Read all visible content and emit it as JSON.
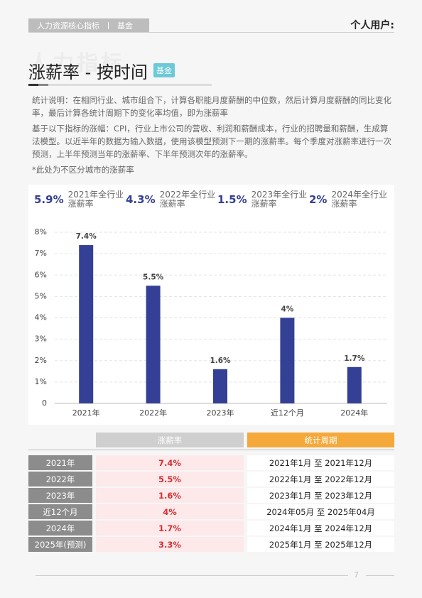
{
  "header": {
    "tags": [
      "人力资源核心指标",
      "基金"
    ],
    "user": "个人用户:"
  },
  "watermark": "人力指标",
  "title": "涨薪率 - 按时间",
  "badge": "基金",
  "description": [
    "统计说明：在相同行业、城市组合下，计算各职能月度薪酬的中位数，然后计算月度薪酬的同比变化率，最后计算各统计周期下的变化率均值，即为涨薪率",
    "基于以下指标的涨幅：CPI，行业上市公司的营收、利润和薪酬成本，行业的招聘量和薪酬，生成算法模型。以近半年的数据为输入数据，使用该模型预测下一期的涨薪率。每个季度对涨薪率进行一次预测，上半年预测当年的涨薪率、下半年预测次年的涨薪率。",
    "*此处为不区分城市的涨薪率"
  ],
  "summary": [
    {
      "value": "5.9%",
      "label": "2021年全行业涨薪率"
    },
    {
      "value": "4.3%",
      "label": "2022年全行业涨薪率"
    },
    {
      "value": "1.5%",
      "label": "2023年全行业涨薪率"
    },
    {
      "value": "2%",
      "label": "2024年全行业涨薪率"
    }
  ],
  "chart_data": {
    "type": "bar",
    "categories": [
      "2021年",
      "2022年",
      "2023年",
      "近12个月",
      "2024年"
    ],
    "values": [
      7.4,
      5.5,
      1.6,
      4,
      1.7
    ],
    "value_labels": [
      "7.4%",
      "5.5%",
      "1.6%",
      "4%",
      "1.7%"
    ],
    "color": "#343f96",
    "ylim": [
      0,
      8
    ],
    "yticks": [
      0,
      {
        "value": 1,
        "label": "1%"
      },
      {
        "value": 2,
        "label": "2%"
      },
      {
        "value": 3,
        "label": "3%"
      },
      {
        "value": 4,
        "label": "4%"
      },
      {
        "value": 5,
        "label": "5%"
      },
      {
        "value": 6,
        "label": "6%"
      },
      {
        "value": 7,
        "label": "7%"
      },
      {
        "value": 8,
        "label": "8%"
      }
    ],
    "grid": true
  },
  "table": {
    "headers": [
      "涨薪率",
      "统计周期"
    ],
    "rows": [
      [
        "2021年",
        "7.4%",
        "2021年1月 至 2021年12月"
      ],
      [
        "2022年",
        "5.5%",
        "2022年1月 至 2022年12月"
      ],
      [
        "2023年",
        "1.6%",
        "2023年1月 至 2023年12月"
      ],
      [
        "近12个月",
        "4%",
        "2024年05月 至 2025年04月"
      ],
      [
        "2024年",
        "1.7%",
        "2024年1月 至 2024年12月"
      ],
      [
        "2025年(预测)",
        "3.3%",
        "2025年1月 至 2025年12月"
      ]
    ]
  },
  "footer": {
    "page": "7"
  }
}
